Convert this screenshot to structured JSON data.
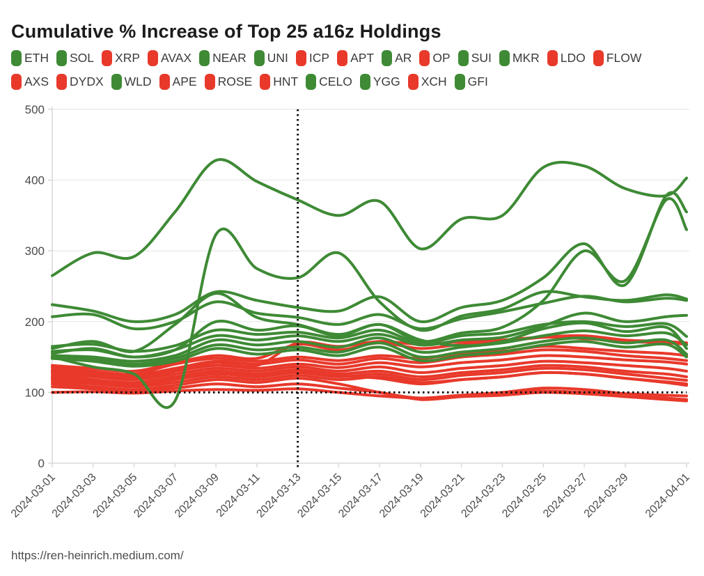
{
  "title": "Cumulative % Increase of Top 25 a16z Holdings",
  "footer": {
    "url": "https://ren-heinrich.medium.com/"
  },
  "colors": {
    "green": "#3e8a35",
    "red": "#e8392b",
    "grid": "#ececec",
    "axis": "#d8d8d8",
    "tick_text": "#4a4a4a",
    "reference_line": "#111111",
    "title_text": "#1b1b1b"
  },
  "legend": {
    "rows": [
      {
        "items": [
          {
            "label": "ETH",
            "color": "#3e8a35"
          },
          {
            "label": "SOL",
            "color": "#3e8a35"
          },
          {
            "label": "XRP",
            "color": "#e8392b"
          },
          {
            "label": "AVAX",
            "color": "#e8392b"
          },
          {
            "label": "NEAR",
            "color": "#3e8a35"
          },
          {
            "label": "UNI",
            "color": "#3e8a35"
          },
          {
            "label": "ICP",
            "color": "#e8392b"
          },
          {
            "label": "APT",
            "color": "#e8392b"
          },
          {
            "label": "AR",
            "color": "#3e8a35"
          },
          {
            "label": "OP",
            "color": "#e8392b"
          },
          {
            "label": "SUI",
            "color": "#3e8a35"
          },
          {
            "label": "MKR",
            "color": "#3e8a35"
          },
          {
            "label": "LDO",
            "color": "#e8392b"
          },
          {
            "label": "FLOW",
            "color": "#e8392b"
          }
        ]
      },
      {
        "items": [
          {
            "label": "AXS",
            "color": "#e8392b"
          },
          {
            "label": "DYDX",
            "color": "#e8392b"
          },
          {
            "label": "WLD",
            "color": "#3e8a35"
          },
          {
            "label": "APE",
            "color": "#e8392b"
          },
          {
            "label": "ROSE",
            "color": "#e8392b"
          },
          {
            "label": "HNT",
            "color": "#e8392b"
          },
          {
            "label": "CELO",
            "color": "#3e8a35"
          },
          {
            "label": "YGG",
            "color": "#3e8a35"
          },
          {
            "label": "XCH",
            "color": "#e8392b"
          },
          {
            "label": "GFI",
            "color": "#3e8a35"
          }
        ]
      }
    ]
  },
  "chart_data": {
    "type": "line",
    "title": "Cumulative % Increase of Top 25 a16z Holdings",
    "xlabel": "",
    "ylabel": "",
    "ylim": [
      0,
      500
    ],
    "yticks": [
      0,
      100,
      200,
      300,
      400,
      500
    ],
    "grid": "horizontal",
    "legend_position": "top",
    "x_dates": [
      "2024-03-01",
      "2024-03-03",
      "2024-03-05",
      "2024-03-07",
      "2024-03-09",
      "2024-03-11",
      "2024-03-13",
      "2024-03-15",
      "2024-03-17",
      "2024-03-19",
      "2024-03-21",
      "2024-03-23",
      "2024-03-25",
      "2024-03-27",
      "2024-03-29",
      "2024-03-31",
      "2024-04-01"
    ],
    "x_tick_labels": [
      "2024-03-01",
      "2024-03-03",
      "2024-03-05",
      "2024-03-07",
      "2024-03-09",
      "2024-03-11",
      "2024-03-13",
      "2024-03-15",
      "2024-03-17",
      "2024-03-19",
      "2024-03-21",
      "2024-03-23",
      "2024-03-25",
      "2024-03-27",
      "2024-03-29",
      "2024-04-01"
    ],
    "reference_lines": {
      "vertical_at": "2024-03-13",
      "horizontal_at": 100,
      "style": "dotted"
    },
    "series": [
      {
        "name": "XRP",
        "color": "#e8392b",
        "values": [
          100,
          101,
          99,
          102,
          104,
          103,
          105,
          100,
          95,
          92,
          96,
          98,
          102,
          100,
          98,
          96,
          95
        ]
      },
      {
        "name": "AVAX",
        "color": "#e8392b",
        "values": [
          135,
          130,
          126,
          140,
          148,
          144,
          150,
          145,
          152,
          148,
          155,
          158,
          165,
          162,
          158,
          155,
          152
        ]
      },
      {
        "name": "ICP",
        "color": "#e8392b",
        "values": [
          128,
          125,
          120,
          130,
          138,
          134,
          140,
          135,
          142,
          136,
          142,
          146,
          152,
          150,
          146,
          143,
          140
        ]
      },
      {
        "name": "APT",
        "color": "#e8392b",
        "values": [
          132,
          128,
          124,
          134,
          144,
          140,
          146,
          140,
          148,
          142,
          150,
          154,
          160,
          158,
          152,
          148,
          145
        ]
      },
      {
        "name": "OP",
        "color": "#e8392b",
        "values": [
          125,
          122,
          118,
          126,
          134,
          130,
          136,
          130,
          136,
          128,
          134,
          138,
          144,
          142,
          138,
          134,
          130
        ]
      },
      {
        "name": "LDO",
        "color": "#e8392b",
        "values": [
          122,
          118,
          114,
          122,
          130,
          126,
          132,
          126,
          130,
          122,
          128,
          132,
          138,
          136,
          130,
          126,
          122
        ]
      },
      {
        "name": "FLOW",
        "color": "#e8392b",
        "values": [
          118,
          115,
          110,
          118,
          126,
          122,
          128,
          122,
          126,
          118,
          124,
          128,
          134,
          132,
          126,
          120,
          117
        ]
      },
      {
        "name": "AXS",
        "color": "#e8392b",
        "values": [
          115,
          112,
          108,
          114,
          122,
          118,
          124,
          118,
          122,
          114,
          118,
          122,
          128,
          126,
          120,
          115,
          112
        ]
      },
      {
        "name": "DYDX",
        "color": "#e8392b",
        "values": [
          130,
          126,
          122,
          132,
          142,
          138,
          170,
          165,
          172,
          168,
          172,
          174,
          178,
          176,
          172,
          170,
          168
        ]
      },
      {
        "name": "APE",
        "color": "#e8392b",
        "values": [
          112,
          108,
          104,
          110,
          118,
          114,
          120,
          112,
          100,
          92,
          96,
          100,
          106,
          104,
          98,
          92,
          90
        ]
      },
      {
        "name": "ROSE",
        "color": "#e8392b",
        "values": [
          120,
          116,
          112,
          120,
          128,
          124,
          130,
          124,
          120,
          112,
          118,
          122,
          128,
          126,
          120,
          114,
          110
        ]
      },
      {
        "name": "HNT",
        "color": "#e8392b",
        "values": [
          138,
          134,
          130,
          142,
          152,
          148,
          168,
          160,
          170,
          162,
          168,
          172,
          178,
          180,
          174,
          172,
          170
        ]
      },
      {
        "name": "XCH",
        "color": "#e8392b",
        "values": [
          108,
          105,
          102,
          106,
          112,
          108,
          112,
          106,
          100,
          90,
          94,
          96,
          100,
          98,
          94,
          90,
          88
        ]
      },
      {
        "name": "GFI",
        "color": "#3e8a35",
        "values": [
          148,
          144,
          137,
          144,
          162,
          154,
          160,
          152,
          164,
          145,
          152,
          157,
          167,
          172,
          164,
          168,
          150
        ]
      },
      {
        "name": "YGG",
        "color": "#3e8a35",
        "values": [
          150,
          147,
          140,
          148,
          167,
          160,
          164,
          157,
          170,
          150,
          157,
          162,
          172,
          177,
          170,
          174,
          154
        ]
      },
      {
        "name": "CELO",
        "color": "#3e8a35",
        "values": [
          152,
          150,
          144,
          152,
          174,
          167,
          172,
          164,
          177,
          157,
          164,
          170,
          180,
          187,
          180,
          184,
          167
        ]
      },
      {
        "name": "MKR",
        "color": "#3e8a35",
        "values": [
          158,
          160,
          150,
          160,
          180,
          174,
          180,
          172,
          182,
          167,
          174,
          178,
          194,
          212,
          200,
          207,
          209
        ]
      },
      {
        "name": "UNI",
        "color": "#3e8a35",
        "values": [
          162,
          172,
          158,
          196,
          240,
          206,
          196,
          182,
          196,
          174,
          166,
          172,
          190,
          198,
          186,
          192,
          162
        ]
      },
      {
        "name": "ETH",
        "color": "#3e8a35",
        "values": [
          165,
          168,
          158,
          166,
          188,
          182,
          185,
          177,
          188,
          170,
          180,
          184,
          196,
          200,
          193,
          197,
          179
        ]
      },
      {
        "name": "SOL",
        "color": "#3e8a35",
        "values": [
          207,
          210,
          190,
          200,
          228,
          212,
          206,
          196,
          210,
          190,
          204,
          214,
          226,
          236,
          228,
          233,
          230
        ]
      },
      {
        "name": "SUI",
        "color": "#3e8a35",
        "values": [
          155,
          162,
          150,
          160,
          200,
          188,
          194,
          180,
          196,
          172,
          184,
          192,
          230,
          300,
          258,
          372,
          330
        ]
      },
      {
        "name": "WLD",
        "color": "#3e8a35",
        "values": [
          150,
          136,
          126,
          88,
          323,
          275,
          262,
          297,
          228,
          188,
          208,
          218,
          242,
          235,
          230,
          238,
          232
        ]
      },
      {
        "name": "NEAR",
        "color": "#3e8a35",
        "values": [
          224,
          215,
          200,
          210,
          242,
          230,
          220,
          215,
          235,
          200,
          220,
          230,
          262,
          310,
          252,
          378,
          355
        ]
      },
      {
        "name": "AR",
        "color": "#3e8a35",
        "values": [
          265,
          297,
          292,
          355,
          428,
          398,
          372,
          350,
          370,
          303,
          345,
          350,
          418,
          420,
          388,
          378,
          403
        ]
      }
    ]
  }
}
